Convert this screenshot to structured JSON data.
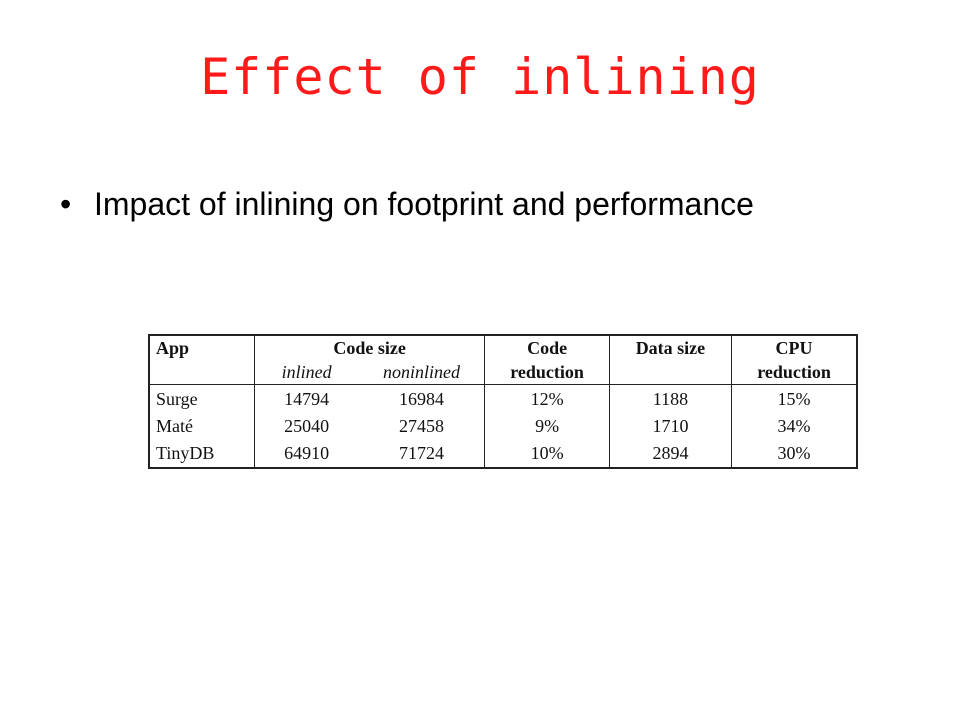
{
  "slide": {
    "title": "Effect of inlining",
    "bullet": "Impact of inlining on footprint and performance"
  },
  "table": {
    "headers": {
      "app": "App",
      "code_size": "Code size",
      "code_reduction_1": "Code",
      "code_reduction_2": "reduction",
      "data_size": "Data size",
      "cpu_reduction_1": "CPU",
      "cpu_reduction_2": "reduction",
      "inlined": "inlined",
      "noninlined": "noninlined"
    },
    "rows": [
      {
        "app": "Surge",
        "inlined": "14794",
        "noninlined": "16984",
        "code_reduction": "12%",
        "data_size": "1188",
        "cpu_reduction": "15%"
      },
      {
        "app": "Maté",
        "inlined": "25040",
        "noninlined": "27458",
        "code_reduction": "9%",
        "data_size": "1710",
        "cpu_reduction": "34%"
      },
      {
        "app": "TinyDB",
        "inlined": "64910",
        "noninlined": "71724",
        "code_reduction": "10%",
        "data_size": "2894",
        "cpu_reduction": "30%"
      }
    ]
  },
  "colors": {
    "title": "#ff1a1a",
    "text": "#000000",
    "table_border": "#222222"
  }
}
